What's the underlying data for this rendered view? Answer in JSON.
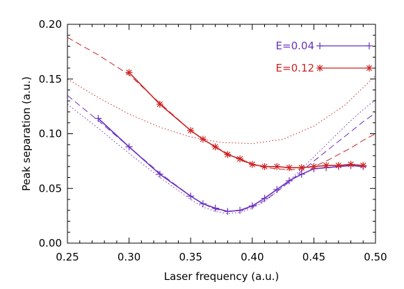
{
  "chart_data": {
    "type": "line",
    "xlabel": "Laser frequency  (a.u.)",
    "ylabel": "Peak separation  (a.u.)",
    "xlim": [
      0.25,
      0.5
    ],
    "ylim": [
      0.0,
      0.2
    ],
    "x_ticks": [
      "0.25",
      "0.30",
      "0.35",
      "0.40",
      "0.45",
      "0.50"
    ],
    "y_ticks": [
      "0.00",
      "0.05",
      "0.10",
      "0.15",
      "0.20"
    ],
    "legend_position": "top-right",
    "series": [
      {
        "name": "E=0.04",
        "color": "#6a2fbf",
        "marker": "plus",
        "x": [
          0.275,
          0.3,
          0.325,
          0.35,
          0.36,
          0.37,
          0.38,
          0.39,
          0.4,
          0.41,
          0.42,
          0.43,
          0.44,
          0.45,
          0.46,
          0.47,
          0.48,
          0.49
        ],
        "y": [
          0.114,
          0.088,
          0.063,
          0.043,
          0.036,
          0.032,
          0.029,
          0.03,
          0.034,
          0.041,
          0.049,
          0.057,
          0.063,
          0.068,
          0.069,
          0.07,
          0.071,
          0.07
        ]
      },
      {
        "name": "E=0.12",
        "color": "#cc2222",
        "marker": "asterisk",
        "x": [
          0.3,
          0.325,
          0.35,
          0.36,
          0.37,
          0.38,
          0.39,
          0.4,
          0.41,
          0.42,
          0.43,
          0.44,
          0.45,
          0.46,
          0.47,
          0.48,
          0.49
        ],
        "y": [
          0.156,
          0.127,
          0.103,
          0.095,
          0.088,
          0.081,
          0.077,
          0.072,
          0.07,
          0.07,
          0.069,
          0.069,
          0.07,
          0.071,
          0.071,
          0.072,
          0.071
        ]
      }
    ],
    "reference_curves": [
      {
        "color": "#6a2fbf",
        "style": "dashed",
        "x": [
          0.25,
          0.275,
          0.3,
          0.325,
          0.35,
          0.36,
          0.37,
          0.38,
          0.39,
          0.4,
          0.41,
          0.42,
          0.43,
          0.44,
          0.45,
          0.46,
          0.47,
          0.48,
          0.49,
          0.5
        ],
        "y": [
          0.135,
          0.112,
          0.088,
          0.064,
          0.043,
          0.036,
          0.031,
          0.029,
          0.03,
          0.033,
          0.039,
          0.047,
          0.056,
          0.066,
          0.075,
          0.084,
          0.093,
          0.102,
          0.111,
          0.119
        ]
      },
      {
        "color": "#6a2fbf",
        "style": "dotted",
        "x": [
          0.25,
          0.275,
          0.3,
          0.325,
          0.35,
          0.36,
          0.37,
          0.38,
          0.39,
          0.4,
          0.41,
          0.42,
          0.43,
          0.44,
          0.45,
          0.46,
          0.47,
          0.48,
          0.49,
          0.5
        ],
        "y": [
          0.127,
          0.105,
          0.082,
          0.06,
          0.04,
          0.033,
          0.029,
          0.027,
          0.028,
          0.032,
          0.038,
          0.047,
          0.057,
          0.068,
          0.079,
          0.09,
          0.101,
          0.112,
          0.122,
          0.131
        ]
      },
      {
        "color": "#cc2222",
        "style": "dashed",
        "x": [
          0.25,
          0.275,
          0.3,
          0.325,
          0.35,
          0.36,
          0.37,
          0.38,
          0.39,
          0.4,
          0.41,
          0.42,
          0.43,
          0.44,
          0.45,
          0.46,
          0.47,
          0.48,
          0.49,
          0.5
        ],
        "y": [
          0.188,
          0.172,
          0.154,
          0.128,
          0.103,
          0.095,
          0.088,
          0.082,
          0.076,
          0.072,
          0.069,
          0.068,
          0.067,
          0.068,
          0.07,
          0.075,
          0.081,
          0.087,
          0.094,
          0.1
        ]
      },
      {
        "color": "#cc2222",
        "style": "dotted",
        "x": [
          0.25,
          0.275,
          0.3,
          0.325,
          0.35,
          0.375,
          0.4,
          0.425,
          0.45,
          0.475,
          0.5
        ],
        "y": [
          0.15,
          0.133,
          0.118,
          0.106,
          0.097,
          0.092,
          0.091,
          0.095,
          0.107,
          0.126,
          0.153
        ]
      }
    ]
  }
}
